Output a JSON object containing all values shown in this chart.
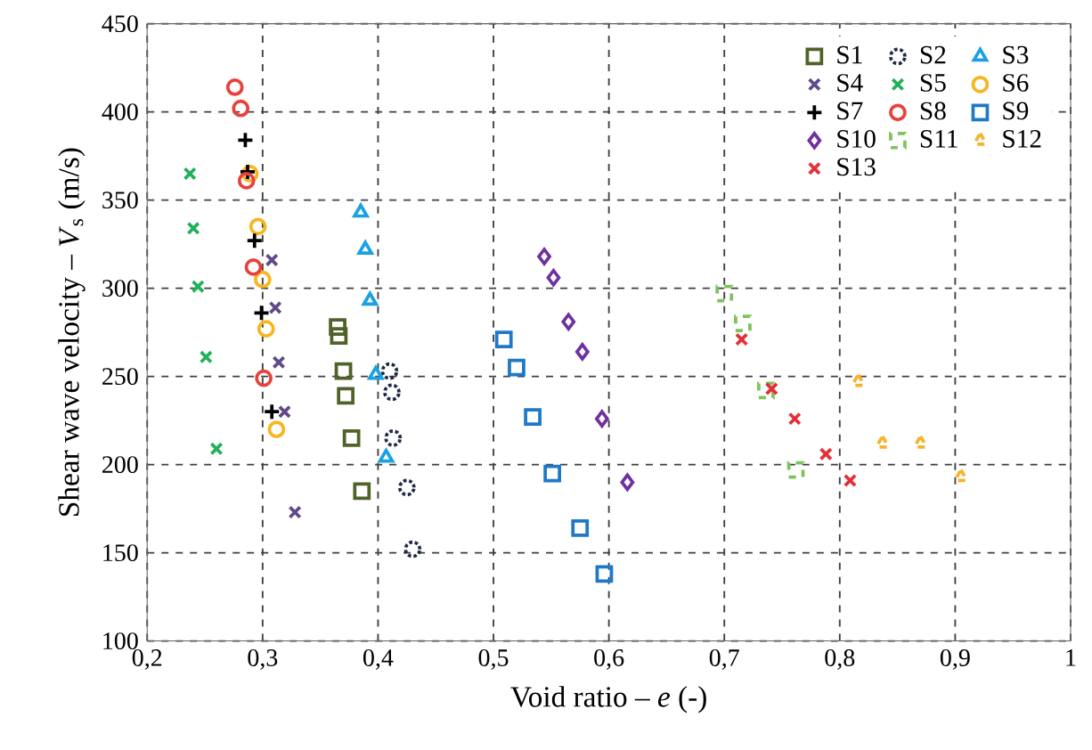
{
  "chart_data": {
    "type": "scatter",
    "xlabel": "Void ratio – *e* (-)",
    "ylabel": "Shear wave velocity – *V*$_{s}$ (m/s)",
    "xlim": [
      0.2,
      1
    ],
    "ylim": [
      100,
      450
    ],
    "xticks": [
      {
        "value": 0.2,
        "label": "0,2"
      },
      {
        "value": 0.3,
        "label": "0,3"
      },
      {
        "value": 0.4,
        "label": "0,4"
      },
      {
        "value": 0.5,
        "label": "0,5"
      },
      {
        "value": 0.6,
        "label": "0,6"
      },
      {
        "value": 0.7,
        "label": "0,7"
      },
      {
        "value": 0.8,
        "label": "0,8"
      },
      {
        "value": 0.9,
        "label": "0,9"
      },
      1
    ],
    "yticks": [
      100,
      150,
      200,
      250,
      300,
      350,
      400,
      450
    ],
    "grid": true,
    "legend": "top right",
    "series": [
      {
        "name": "S1",
        "color": "#4f6228",
        "marker": "square",
        "x": [
          0.365,
          0.366,
          0.37,
          0.372,
          0.377,
          0.386
        ],
        "values": [
          278,
          273,
          253,
          239,
          215,
          185
        ]
      },
      {
        "name": "S2",
        "color": "#1f2a44",
        "marker": "circle",
        "line_style": "dotted",
        "x": [
          0.41,
          0.412,
          0.413,
          0.425,
          0.43
        ],
        "values": [
          253,
          241,
          215,
          187,
          152
        ]
      },
      {
        "name": "S3",
        "color": "#1ba1e2",
        "marker": "triangle",
        "x": [
          0.385,
          0.389,
          0.393,
          0.398,
          0.407
        ],
        "values": [
          343,
          322,
          293,
          251,
          204
        ]
      },
      {
        "name": "S4",
        "color": "#5f4b8b",
        "marker": "cross",
        "x": [
          0.308,
          0.311,
          0.314,
          0.319,
          0.328
        ],
        "values": [
          316,
          289,
          258,
          230,
          173
        ]
      },
      {
        "name": "S5",
        "color": "#21b15a",
        "marker": "cross",
        "x": [
          0.237,
          0.24,
          0.244,
          0.251,
          0.26
        ],
        "values": [
          365,
          334,
          301,
          261,
          209
        ]
      },
      {
        "name": "S6",
        "color": "#f8b51e",
        "marker": "circle",
        "x": [
          0.289,
          0.296,
          0.3,
          0.303,
          0.312
        ],
        "values": [
          365,
          335,
          305,
          277,
          220
        ]
      },
      {
        "name": "S7",
        "color": "#000000",
        "marker": "plus",
        "x": [
          0.285,
          0.287,
          0.293,
          0.299,
          0.308
        ],
        "values": [
          384,
          366,
          327,
          286,
          230
        ]
      },
      {
        "name": "S8",
        "color": "#e8413c",
        "marker": "circle",
        "x": [
          0.276,
          0.281,
          0.286,
          0.292,
          0.301
        ],
        "values": [
          414,
          402,
          361,
          312,
          249
        ]
      },
      {
        "name": "S9",
        "color": "#1f78c8",
        "marker": "square",
        "x": [
          0.509,
          0.52,
          0.534,
          0.551,
          0.575,
          0.596
        ],
        "values": [
          271,
          255,
          227,
          195,
          164,
          138
        ]
      },
      {
        "name": "S10",
        "color": "#7030a0",
        "marker": "diamond",
        "x": [
          0.544,
          0.552,
          0.565,
          0.577,
          0.594,
          0.616
        ],
        "values": [
          318,
          306,
          281,
          264,
          226,
          190
        ]
      },
      {
        "name": "S11",
        "color": "#7dc35b",
        "marker": "square",
        "line_style": "dashed",
        "x": [
          0.7,
          0.716,
          0.736,
          0.762
        ],
        "values": [
          297,
          280,
          242,
          197
        ]
      },
      {
        "name": "S12",
        "color": "#f7b32b",
        "marker": "triangle",
        "line_style": "dashed",
        "x": [
          0.816,
          0.837,
          0.87,
          0.905
        ],
        "values": [
          247,
          212,
          212,
          193
        ]
      },
      {
        "name": "S13",
        "color": "#e52f36",
        "marker": "cross",
        "x": [
          0.715,
          0.741,
          0.761,
          0.788,
          0.809
        ],
        "values": [
          271,
          243,
          226,
          206,
          191
        ]
      }
    ]
  }
}
